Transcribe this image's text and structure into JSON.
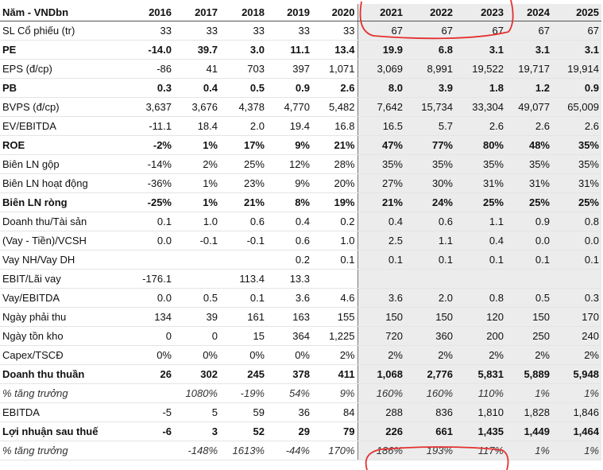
{
  "table": {
    "header": [
      "Năm - VNDbn",
      "2016",
      "2017",
      "2018",
      "2019",
      "2020",
      "2021",
      "2022",
      "2023",
      "2024",
      "2025"
    ],
    "rows": [
      {
        "style": "normal",
        "cells": [
          "SL Cổ phiếu (tr)",
          "33",
          "33",
          "33",
          "33",
          "33",
          "67",
          "67",
          "67",
          "67",
          "67"
        ]
      },
      {
        "style": "bold",
        "cells": [
          "PE",
          "-14.0",
          "39.7",
          "3.0",
          "11.1",
          "13.4",
          "19.9",
          "6.8",
          "3.1",
          "3.1",
          "3.1"
        ]
      },
      {
        "style": "normal",
        "cells": [
          "EPS (đ/cp)",
          "-86",
          "41",
          "703",
          "397",
          "1,071",
          "3,069",
          "8,991",
          "19,522",
          "19,717",
          "19,914"
        ]
      },
      {
        "style": "bold",
        "cells": [
          "PB",
          "0.3",
          "0.4",
          "0.5",
          "0.9",
          "2.6",
          "8.0",
          "3.9",
          "1.8",
          "1.2",
          "0.9"
        ]
      },
      {
        "style": "normal",
        "cells": [
          "BVPS (đ/cp)",
          "3,637",
          "3,676",
          "4,378",
          "4,770",
          "5,482",
          "7,642",
          "15,734",
          "33,304",
          "49,077",
          "65,009"
        ]
      },
      {
        "style": "normal",
        "cells": [
          "EV/EBITDA",
          "-11.1",
          "18.4",
          "2.0",
          "19.4",
          "16.8",
          "16.5",
          "5.7",
          "2.6",
          "2.6",
          "2.6"
        ]
      },
      {
        "style": "bold",
        "cells": [
          "ROE",
          "-2%",
          "1%",
          "17%",
          "9%",
          "21%",
          "47%",
          "77%",
          "80%",
          "48%",
          "35%"
        ]
      },
      {
        "style": "normal",
        "cells": [
          "Biên LN gộp",
          "-14%",
          "2%",
          "25%",
          "12%",
          "28%",
          "35%",
          "35%",
          "35%",
          "35%",
          "35%"
        ]
      },
      {
        "style": "normal",
        "cells": [
          "Biên LN hoạt động",
          "-36%",
          "1%",
          "23%",
          "9%",
          "20%",
          "27%",
          "30%",
          "31%",
          "31%",
          "31%"
        ]
      },
      {
        "style": "bold",
        "cells": [
          "Biên LN ròng",
          "-25%",
          "1%",
          "21%",
          "8%",
          "19%",
          "21%",
          "24%",
          "25%",
          "25%",
          "25%"
        ]
      },
      {
        "style": "normal",
        "cells": [
          "Doanh thu/Tài sản",
          "0.1",
          "1.0",
          "0.6",
          "0.4",
          "0.2",
          "0.4",
          "0.6",
          "1.1",
          "0.9",
          "0.8"
        ]
      },
      {
        "style": "normal",
        "cells": [
          "(Vay - Tiền)/VCSH",
          "0.0",
          "-0.1",
          "-0.1",
          "0.6",
          "1.0",
          "2.5",
          "1.1",
          "0.4",
          "0.0",
          "0.0"
        ]
      },
      {
        "style": "normal",
        "cells": [
          "Vay NH/Vay DH",
          null,
          null,
          null,
          "0.2",
          "0.1",
          "0.1",
          "0.1",
          "0.1",
          "0.1",
          "0.1"
        ]
      },
      {
        "style": "normal",
        "cells": [
          "EBIT/Lãi vay",
          "-176.1",
          null,
          "113.4",
          "13.3",
          null,
          null,
          null,
          null,
          null,
          null
        ]
      },
      {
        "style": "normal",
        "cells": [
          "Vay/EBITDA",
          "0.0",
          "0.5",
          "0.1",
          "3.6",
          "4.6",
          "3.6",
          "2.0",
          "0.8",
          "0.5",
          "0.3"
        ]
      },
      {
        "style": "normal",
        "cells": [
          "Ngày phải thu",
          "134",
          "39",
          "161",
          "163",
          "155",
          "150",
          "150",
          "120",
          "150",
          "170"
        ]
      },
      {
        "style": "normal",
        "cells": [
          "Ngày tồn kho",
          "0",
          "0",
          "15",
          "364",
          "1,225",
          "720",
          "360",
          "200",
          "250",
          "240"
        ]
      },
      {
        "style": "normal",
        "cells": [
          "Capex/TSCĐ",
          "0%",
          "0%",
          "0%",
          "0%",
          "2%",
          "2%",
          "2%",
          "2%",
          "2%",
          "2%"
        ]
      },
      {
        "style": "bold",
        "cells": [
          "Doanh thu thuần",
          "26",
          "302",
          "245",
          "378",
          "411",
          "1,068",
          "2,776",
          "5,831",
          "5,889",
          "5,948"
        ]
      },
      {
        "style": "italic",
        "cells": [
          "% tăng trưởng",
          null,
          "1080%",
          "-19%",
          "54%",
          "9%",
          "160%",
          "160%",
          "110%",
          "1%",
          "1%"
        ]
      },
      {
        "style": "normal",
        "cells": [
          "EBITDA",
          "-5",
          "5",
          "59",
          "36",
          "84",
          "288",
          "836",
          "1,810",
          "1,828",
          "1,846"
        ]
      },
      {
        "style": "bold",
        "cells": [
          "Lợi nhuận sau thuế",
          "-6",
          "3",
          "52",
          "29",
          "79",
          "226",
          "661",
          "1,435",
          "1,449",
          "1,464"
        ]
      },
      {
        "style": "italic",
        "cells": [
          "% tăng trưởng",
          null,
          "-148%",
          "1613%",
          "-44%",
          "170%",
          "186%",
          "193%",
          "117%",
          "1%",
          "1%"
        ]
      }
    ]
  }
}
